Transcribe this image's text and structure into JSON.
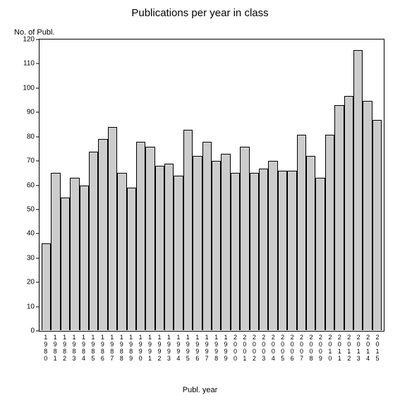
{
  "chart": {
    "type": "bar",
    "title": "Publications per year in class",
    "title_fontsize": 15,
    "y_axis_label": "No. of Publ.",
    "x_axis_label": "Publ. year",
    "label_fontsize": 11,
    "tick_fontsize": 10,
    "background_color": "#ffffff",
    "bar_fill_color": "#cccccc",
    "bar_border_color": "#000000",
    "border_color": "#000000",
    "text_color": "#000000",
    "ylim": [
      0,
      120
    ],
    "ytick_step": 10,
    "yticks": [
      0,
      10,
      20,
      30,
      40,
      50,
      60,
      70,
      80,
      90,
      100,
      110,
      120
    ],
    "categories": [
      "1980",
      "1981",
      "1982",
      "1983",
      "1984",
      "1985",
      "1986",
      "1987",
      "1988",
      "1989",
      "1990",
      "1991",
      "1992",
      "1993",
      "1994",
      "1995",
      "1996",
      "1997",
      "1998",
      "1999",
      "2000",
      "2001",
      "2002",
      "2003",
      "2004",
      "2005",
      "2006",
      "2007",
      "2008",
      "2009",
      "2010",
      "2011",
      "2012",
      "2013",
      "2014",
      "2015"
    ],
    "values": [
      36,
      65,
      55,
      63,
      60,
      74,
      79,
      84,
      65,
      59,
      78,
      76,
      68,
      69,
      64,
      83,
      72,
      78,
      70,
      73,
      65,
      76,
      65,
      67,
      70,
      66,
      66,
      81,
      72,
      63,
      81,
      93,
      97,
      116,
      95,
      87
    ]
  }
}
